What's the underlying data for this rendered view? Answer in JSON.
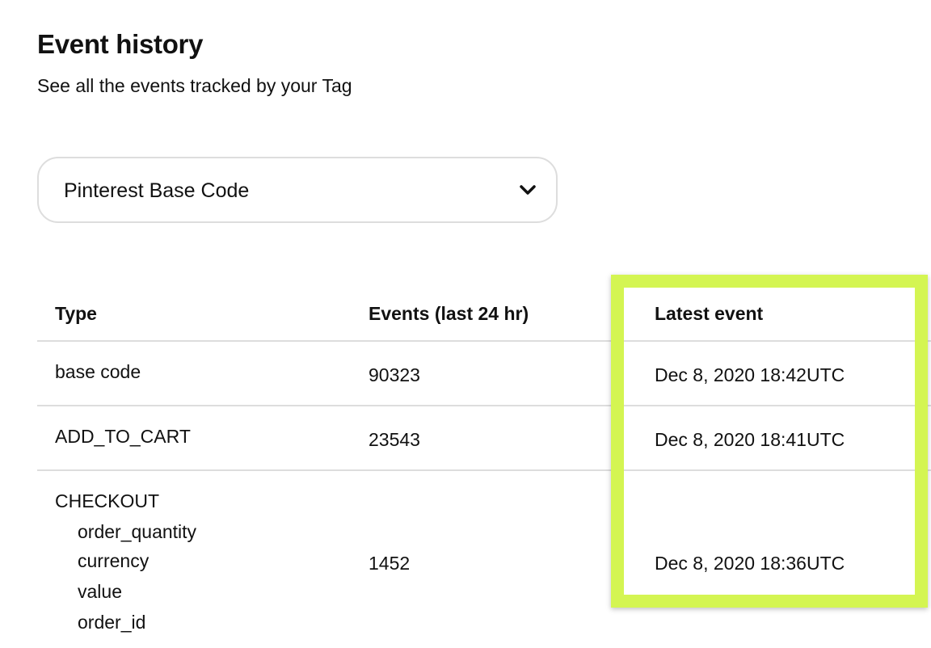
{
  "header": {
    "title": "Event history",
    "subtitle": "See all the events tracked by your Tag"
  },
  "tag_select": {
    "value": "Pinterest Base Code",
    "icon": "chevron-down-icon"
  },
  "table": {
    "columns": [
      "Type",
      "Events (last 24 hr)",
      "Latest event"
    ],
    "rows": [
      {
        "type": "base code",
        "params": [],
        "events": "90323",
        "latest": "Dec 8, 2020 18:42UTC"
      },
      {
        "type": "ADD_TO_CART",
        "params": [],
        "events": "23543",
        "latest": "Dec 8, 2020 18:41UTC"
      },
      {
        "type": "CHECKOUT",
        "params": [
          "order_quantity",
          "currency",
          "value",
          "order_id"
        ],
        "events": "1452",
        "latest": "Dec 8, 2020 18:36UTC"
      }
    ]
  },
  "highlight": {
    "color": "#d4f552"
  }
}
